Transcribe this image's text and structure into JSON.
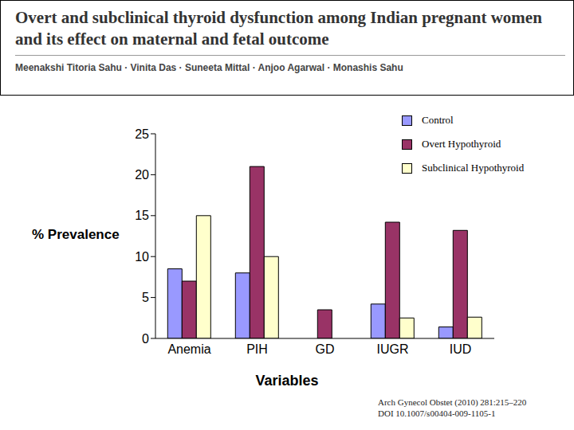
{
  "chart_data": {
    "type": "bar",
    "title": "Overt and subclinical thyroid dysfunction among Indian pregnant women and its effect on maternal and fetal outcome",
    "subtitle": "Meenakshi Titoria Sahu · Vinita Das · Suneeta Mittal · Anjoo Agarwal · Monashis Sahu",
    "x_label": "Variables",
    "y_label": "% Prevalence",
    "categories": [
      "Anemia",
      "PIH",
      "GD",
      "IUGR",
      "IUD"
    ],
    "series": [
      {
        "name": "Control",
        "color": "#9999ff",
        "values": [
          8.5,
          8,
          0,
          4.2,
          1.4
        ]
      },
      {
        "name": "Overt Hypothyroid",
        "color": "#993366",
        "values": [
          7,
          21,
          3.5,
          14.2,
          13.2
        ]
      },
      {
        "name": "Subclinical Hypothyroid",
        "color": "#ffffcc",
        "values": [
          15,
          10,
          0,
          2.5,
          2.6
        ]
      }
    ],
    "ylim": [
      0,
      25
    ],
    "yticks": [
      0,
      5,
      10,
      15,
      20,
      25
    ],
    "legend": "right",
    "annotations": [
      "Arch Gynecol Obstet (2010) 281:215–220",
      "DOI 10.1007/s00404-009-1105-1"
    ]
  }
}
